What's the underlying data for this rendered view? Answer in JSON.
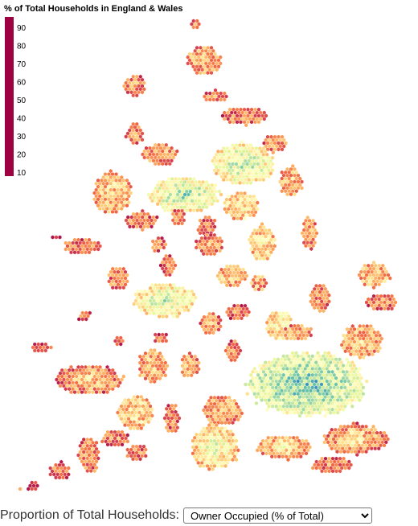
{
  "legend": {
    "title": "% of Total Households in England & Wales",
    "ticks": [
      "90",
      "80",
      "70",
      "60",
      "50",
      "40",
      "30",
      "20",
      "10"
    ],
    "scale_min": 8,
    "scale_max": 96,
    "colors": [
      "#9e0142",
      "#d53e4f",
      "#f46d43",
      "#fdae61",
      "#fee08b",
      "#ffffbf",
      "#e6f598",
      "#abdda4",
      "#66c2a5",
      "#3288bd",
      "#5e4fa2"
    ]
  },
  "controls": {
    "label": "Proportion of Total Households:",
    "selected": "Owner Occupied (% of Total)"
  }
}
